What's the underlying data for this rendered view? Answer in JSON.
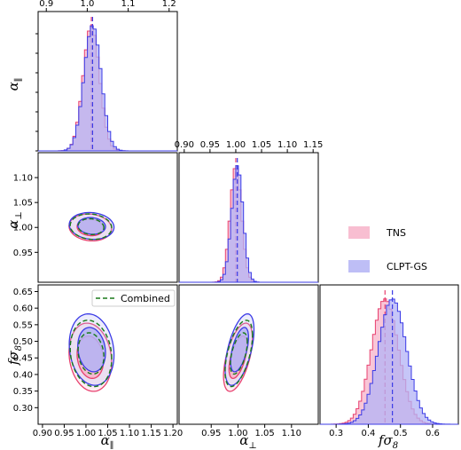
{
  "chart_data": {
    "type": "corner",
    "parameters": [
      {
        "key": "alpha_par",
        "label": "α",
        "subscript": "∥"
      },
      {
        "key": "alpha_perp",
        "label": "α",
        "subscript": "⊥"
      },
      {
        "key": "fsigma8",
        "label": "fσ",
        "subscript": "8"
      }
    ],
    "series": [
      {
        "name": "TNS",
        "color": "#e8416f",
        "fill": "#f7b3c9",
        "means": {
          "alpha_par": 1.01,
          "alpha_perp": 1.0,
          "fsigma8": 0.452
        },
        "sigmas": {
          "alpha_par": 0.02,
          "alpha_perp": 0.011,
          "fsigma8": 0.042
        }
      },
      {
        "name": "CLPT-GS",
        "color": "#3b3be6",
        "fill": "#b3b3f5",
        "means": {
          "alpha_par": 1.013,
          "alpha_perp": 1.003,
          "fsigma8": 0.475
        },
        "sigmas": {
          "alpha_par": 0.021,
          "alpha_perp": 0.011,
          "fsigma8": 0.044
        }
      },
      {
        "name": "Combined",
        "color": "#1a7a1a",
        "style": "dashed"
      }
    ],
    "panels": {
      "diag_par": {
        "xlim": [
          0.88,
          1.22
        ],
        "ticks": [
          0.9,
          1.0,
          1.1,
          1.2
        ],
        "tick_labels": [
          "0.9",
          "1.0",
          "1.1",
          "1.2"
        ]
      },
      "diag_perp": {
        "xlim": [
          0.89,
          1.16
        ],
        "ticks": [
          0.9,
          0.95,
          1.0,
          1.05,
          1.1,
          1.15
        ],
        "tick_labels": [
          "0.90",
          "0.95",
          "1.00",
          "1.05",
          "1.10",
          "1.15"
        ]
      },
      "diag_f": {
        "xlim": [
          0.25,
          0.68
        ],
        "ticks": [
          0.3,
          0.4,
          0.5,
          0.6
        ],
        "tick_labels": [
          "0.3",
          "0.4",
          "0.5",
          "0.6"
        ]
      },
      "x_par": {
        "xlim": [
          0.89,
          1.21
        ],
        "ticks": [
          0.9,
          0.95,
          1.0,
          1.05,
          1.1,
          1.15,
          1.2
        ],
        "tick_labels": [
          "0.90",
          "0.95",
          "1.00",
          "1.05",
          "1.10",
          "1.15",
          "1.20"
        ]
      },
      "x_perp": {
        "xlim": [
          0.89,
          1.15
        ],
        "ticks": [
          0.95,
          1.0,
          1.05,
          1.1
        ],
        "tick_labels": [
          "0.95",
          "1.00",
          "1.05",
          "1.10"
        ]
      },
      "y_perp": {
        "ylim": [
          0.89,
          1.15
        ],
        "ticks": [
          0.95,
          1.0,
          1.05,
          1.1
        ],
        "tick_labels": [
          "0.95",
          "1.00",
          "1.05",
          "1.10"
        ]
      },
      "y_f": {
        "ylim": [
          0.25,
          0.67
        ],
        "ticks": [
          0.3,
          0.35,
          0.4,
          0.45,
          0.5,
          0.55,
          0.6,
          0.65
        ],
        "tick_labels": [
          "0.30",
          "0.35",
          "0.40",
          "0.45",
          "0.50",
          "0.55",
          "0.60",
          "0.65"
        ]
      }
    },
    "contours": {
      "par_perp": {
        "x": "alpha_par",
        "y": "alpha_perp",
        "rho": {
          "TNS": -0.1,
          "CLPT-GS": -0.1
        }
      },
      "par_f": {
        "x": "alpha_par",
        "y": "fsigma8",
        "rho": {
          "TNS": -0.15,
          "CLPT-GS": -0.15
        }
      },
      "perp_f": {
        "x": "alpha_perp",
        "y": "fsigma8",
        "rho": {
          "TNS": 0.55,
          "CLPT-GS": 0.55
        }
      }
    },
    "legend": {
      "placement": "right-middle",
      "entries": [
        "TNS",
        "CLPT-GS"
      ]
    },
    "inline_legend": {
      "placement": "top-right of lower-left panel",
      "entry": "Combined"
    }
  }
}
